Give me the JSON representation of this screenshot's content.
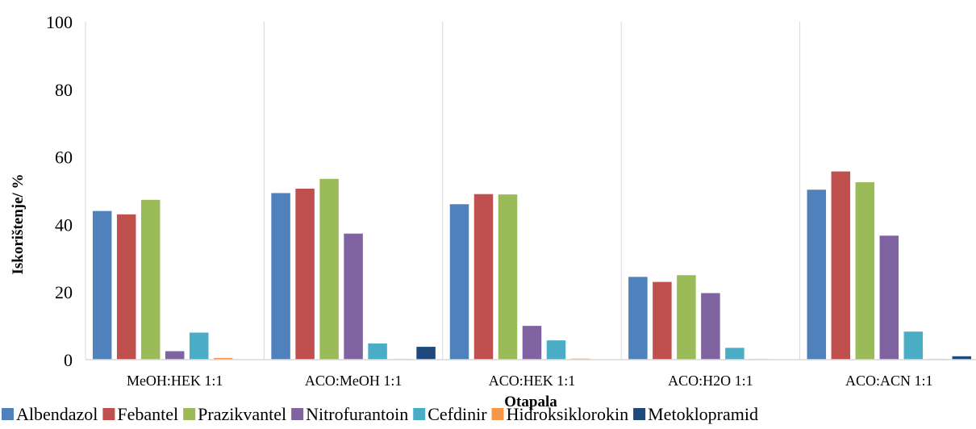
{
  "chart_data": {
    "type": "bar",
    "title": "",
    "xlabel": "Otapala",
    "ylabel": "Iskorištenje/ %",
    "ylim": [
      0,
      100
    ],
    "yticks": [
      "0",
      "20",
      "40",
      "60",
      "80",
      "100"
    ],
    "categories": [
      "MeOH:HEK 1:1",
      "ACO:MeOH 1:1",
      "ACO:HEK 1:1",
      "ACO:H2O 1:1",
      "ACO:ACN 1:1"
    ],
    "grid": "vertical category separators",
    "legend_position": "bottom",
    "series": [
      {
        "name": "Albendazol",
        "color": "#4f81bd",
        "values": [
          44,
          49.3,
          46,
          24.5,
          50.3
        ]
      },
      {
        "name": "Febantel",
        "color": "#c0504d",
        "values": [
          43,
          50.6,
          49,
          23,
          55.7
        ]
      },
      {
        "name": "Prazikvantel",
        "color": "#9bbb59",
        "values": [
          47.3,
          53.5,
          48.9,
          25,
          52.5
        ]
      },
      {
        "name": "Nitrofurantoin",
        "color": "#8064a2",
        "values": [
          2.5,
          37.3,
          10,
          19.7,
          36.7
        ]
      },
      {
        "name": "Cefdinir",
        "color": "#4bacc6",
        "values": [
          8,
          4.8,
          5.7,
          3.5,
          8.3
        ]
      },
      {
        "name": "Hidroksiklorokin",
        "color": "#f79646",
        "values": [
          0.5,
          0.2,
          0.3,
          0.2,
          0.2
        ]
      },
      {
        "name": "Metoklopramid",
        "color": "#1f497d",
        "values": [
          0,
          3.8,
          0,
          0,
          1
        ]
      }
    ]
  }
}
